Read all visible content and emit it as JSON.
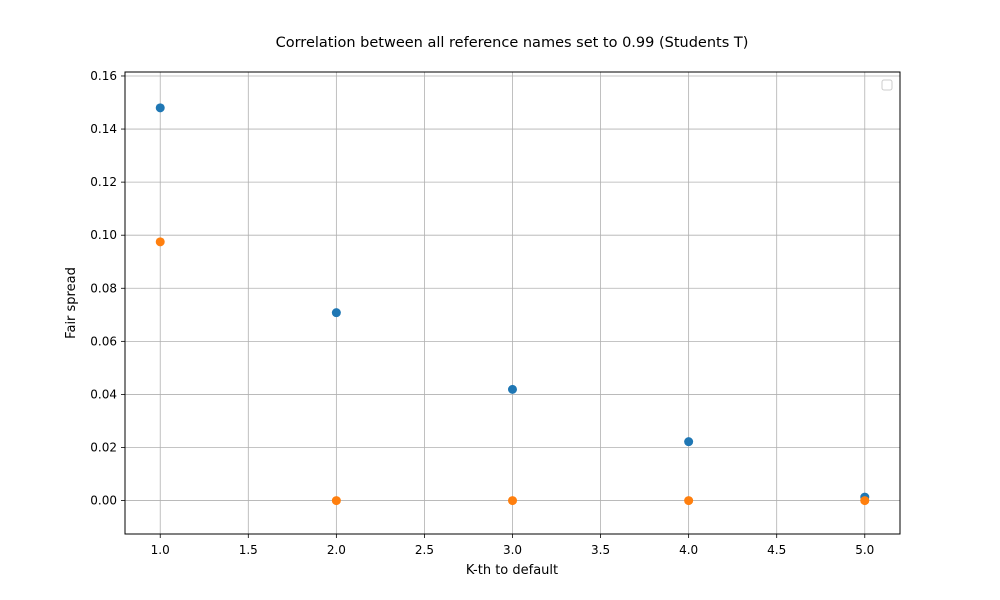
{
  "chart_data": {
    "type": "scatter",
    "title": "Correlation between all reference names set to 0.99 (Students T)",
    "xlabel": "K-th to default",
    "ylabel": "Fair spread",
    "xlim": [
      0.8,
      5.2
    ],
    "ylim": [
      -0.0126,
      0.1615
    ],
    "xticks": [
      1.0,
      1.5,
      2.0,
      2.5,
      3.0,
      3.5,
      4.0,
      4.5,
      5.0
    ],
    "xtick_labels": [
      "1.0",
      "1.5",
      "2.0",
      "2.5",
      "3.0",
      "3.5",
      "4.0",
      "4.5",
      "5.0"
    ],
    "yticks": [
      0.0,
      0.02,
      0.04,
      0.06,
      0.08,
      0.1,
      0.12,
      0.14,
      0.16
    ],
    "ytick_labels": [
      "0.00",
      "0.02",
      "0.04",
      "0.06",
      "0.08",
      "0.10",
      "0.12",
      "0.14",
      "0.16"
    ],
    "grid": true,
    "legend": {
      "placement": "top-right",
      "entries": []
    },
    "series": [
      {
        "color": "#1f77b4",
        "x": [
          1,
          2,
          3,
          4,
          5
        ],
        "y": [
          0.148,
          0.0708,
          0.0419,
          0.0222,
          0.0013
        ]
      },
      {
        "color": "#ff7f0e",
        "x": [
          1,
          2,
          3,
          4,
          5
        ],
        "y": [
          0.0975,
          0.0,
          0.0,
          0.0,
          0.0
        ]
      }
    ]
  }
}
